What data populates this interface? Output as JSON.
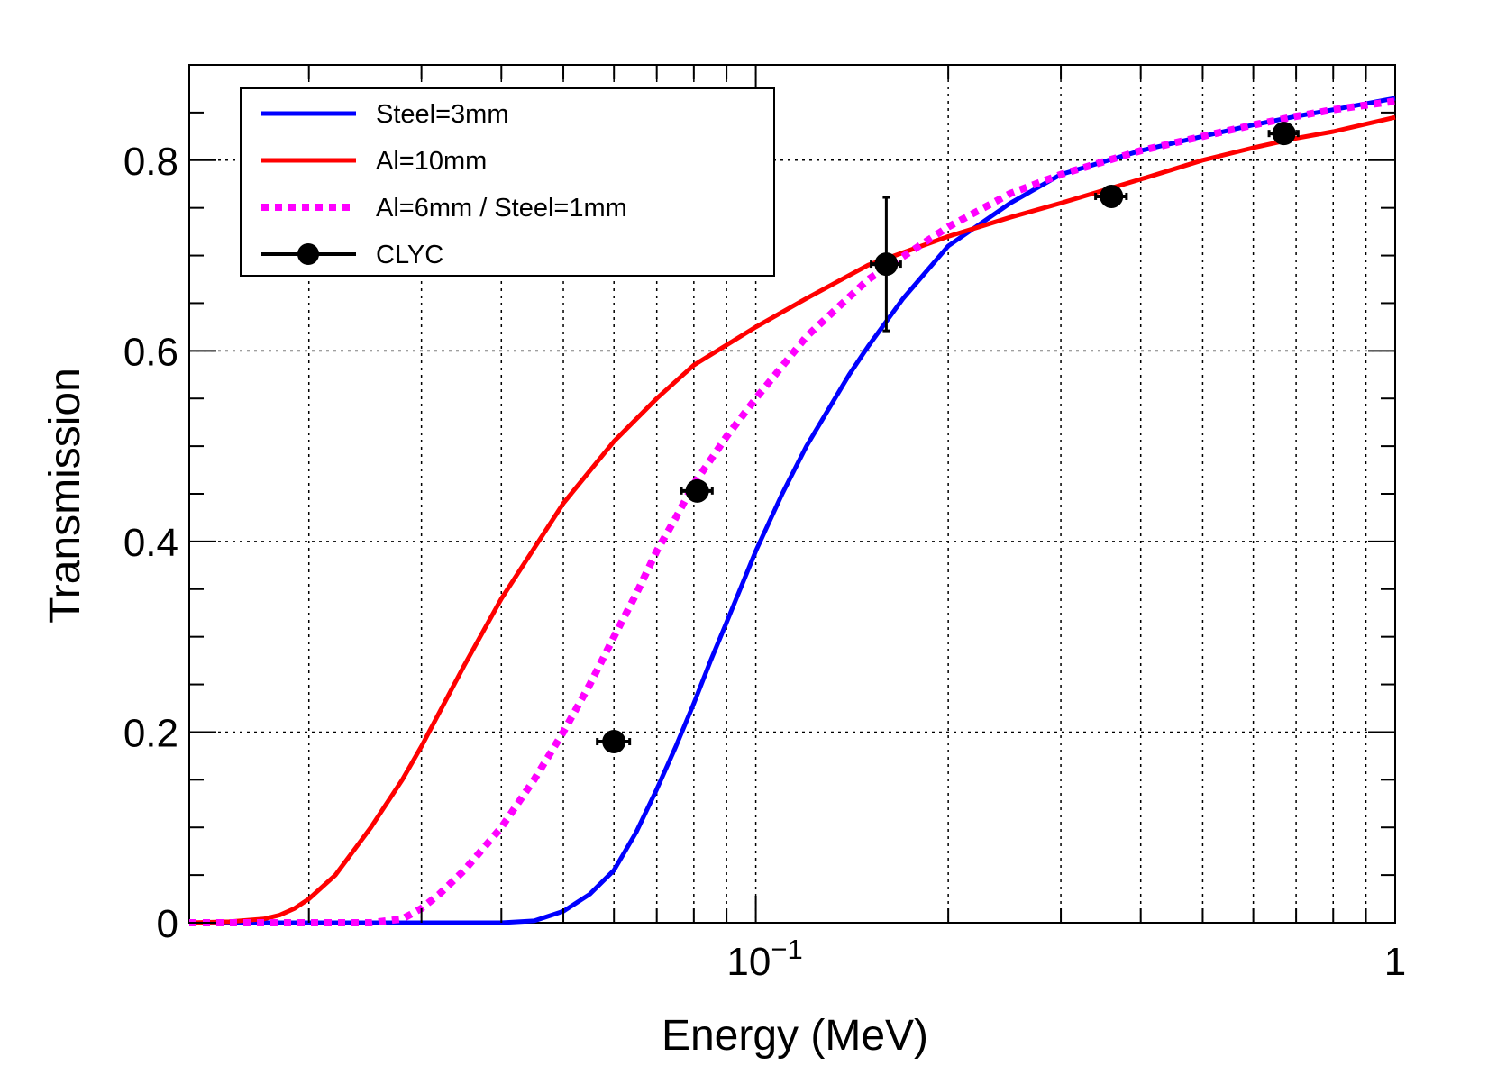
{
  "chart_data": {
    "type": "line",
    "title": "",
    "xlabel": "Energy (MeV)",
    "ylabel": "Transmission",
    "xscale": "log",
    "xlim": [
      0.013,
      1.0
    ],
    "ylim": [
      0,
      0.9
    ],
    "grid": true,
    "legend_position": "top-left",
    "x_tick_labels": [
      {
        "value": 0.1,
        "base": "10",
        "exp": "−1"
      },
      {
        "value": 1.0,
        "base": "1",
        "exp": ""
      }
    ],
    "y_tick_labels": [
      {
        "value": 0,
        "label": "0"
      },
      {
        "value": 0.2,
        "label": "0.2"
      },
      {
        "value": 0.4,
        "label": "0.4"
      },
      {
        "value": 0.6,
        "label": "0.6"
      },
      {
        "value": 0.8,
        "label": "0.8"
      }
    ],
    "series": [
      {
        "name": "Steel=3mm",
        "color": "#0000ff",
        "style": "solid",
        "x": [
          0.013,
          0.02,
          0.03,
          0.04,
          0.045,
          0.05,
          0.055,
          0.06,
          0.065,
          0.07,
          0.075,
          0.08,
          0.085,
          0.09,
          0.1,
          0.11,
          0.12,
          0.14,
          0.15,
          0.17,
          0.2,
          0.25,
          0.3,
          0.4,
          0.5,
          0.6,
          0.7,
          0.8,
          1.0
        ],
        "y": [
          0.0,
          0.0,
          0.0,
          0.0,
          0.002,
          0.012,
          0.03,
          0.055,
          0.095,
          0.14,
          0.185,
          0.23,
          0.275,
          0.315,
          0.39,
          0.45,
          0.5,
          0.575,
          0.605,
          0.655,
          0.71,
          0.755,
          0.785,
          0.81,
          0.825,
          0.837,
          0.846,
          0.853,
          0.865
        ]
      },
      {
        "name": "Al=10mm",
        "color": "#ff0000",
        "style": "solid",
        "x": [
          0.013,
          0.015,
          0.017,
          0.018,
          0.019,
          0.02,
          0.022,
          0.025,
          0.028,
          0.03,
          0.035,
          0.04,
          0.05,
          0.06,
          0.07,
          0.08,
          0.1,
          0.12,
          0.15,
          0.2,
          0.25,
          0.3,
          0.4,
          0.5,
          0.6,
          0.7,
          0.8,
          1.0
        ],
        "y": [
          0.0,
          0.001,
          0.004,
          0.008,
          0.015,
          0.025,
          0.05,
          0.1,
          0.15,
          0.185,
          0.27,
          0.34,
          0.44,
          0.505,
          0.55,
          0.585,
          0.625,
          0.655,
          0.69,
          0.72,
          0.74,
          0.755,
          0.78,
          0.8,
          0.813,
          0.823,
          0.83,
          0.845
        ]
      },
      {
        "name": "Al=6mm / Steel=1mm",
        "color": "#ff00ff",
        "style": "dotted",
        "x": [
          0.013,
          0.025,
          0.028,
          0.03,
          0.032,
          0.035,
          0.04,
          0.045,
          0.05,
          0.055,
          0.06,
          0.065,
          0.07,
          0.075,
          0.08,
          0.09,
          0.1,
          0.12,
          0.15,
          0.2,
          0.25,
          0.3,
          0.4,
          0.5,
          0.6,
          0.7,
          0.8,
          1.0
        ],
        "y": [
          0.0,
          0.0,
          0.004,
          0.015,
          0.03,
          0.055,
          0.1,
          0.15,
          0.2,
          0.25,
          0.3,
          0.345,
          0.39,
          0.425,
          0.46,
          0.51,
          0.55,
          0.615,
          0.675,
          0.73,
          0.765,
          0.785,
          0.81,
          0.825,
          0.837,
          0.846,
          0.853,
          0.862
        ]
      }
    ],
    "points": {
      "name": "CLYC",
      "color": "#000000",
      "x": [
        0.06,
        0.081,
        0.16,
        0.36,
        0.67
      ],
      "y": [
        0.19,
        0.453,
        0.691,
        0.762,
        0.828
      ],
      "xerr_low": [
        0.0035,
        0.0045,
        0.0085,
        0.02,
        0.035
      ],
      "xerr_high": [
        0.0035,
        0.0045,
        0.0085,
        0.02,
        0.035
      ],
      "yerr": [
        0.005,
        0.005,
        0.07,
        0.005,
        0.005
      ]
    }
  }
}
